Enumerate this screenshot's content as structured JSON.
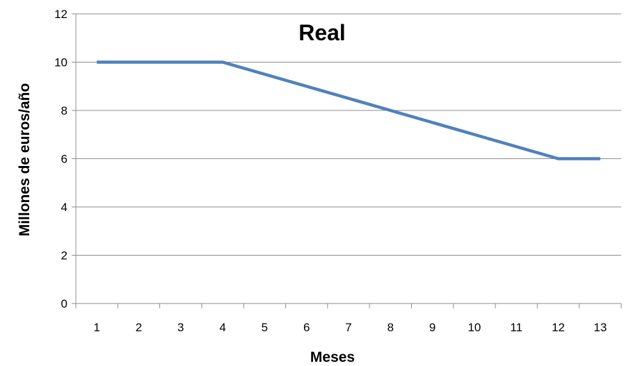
{
  "chart_data": {
    "type": "line",
    "title": "Real",
    "xlabel": "Meses",
    "ylabel": "Millones de euros/año",
    "categories": [
      "1",
      "2",
      "3",
      "4",
      "5",
      "6",
      "7",
      "8",
      "9",
      "10",
      "11",
      "12",
      "13"
    ],
    "series": [
      {
        "values": [
          10,
          10,
          10,
          10,
          9.5,
          9,
          8.5,
          8,
          7.5,
          7,
          6.5,
          6,
          6
        ]
      }
    ],
    "ylim": [
      0,
      12
    ],
    "yticks": [
      0,
      2,
      4,
      6,
      8,
      10,
      12
    ],
    "grid": "horizontal",
    "legend": "none",
    "colors": {
      "series": "#4f81bd",
      "grid": "#8c8c8c"
    }
  }
}
